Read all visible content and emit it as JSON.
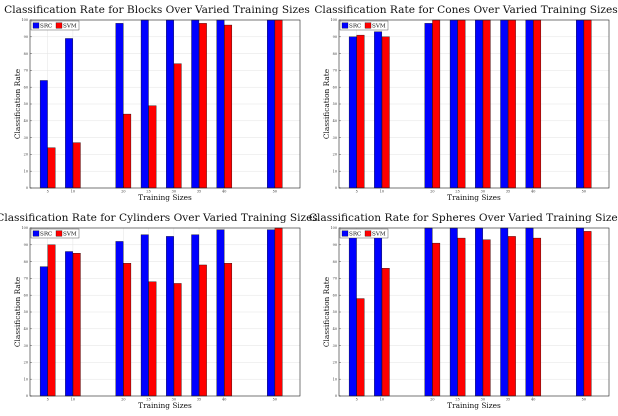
{
  "chart_data": [
    {
      "type": "bar",
      "title": "Classification Rate for Blocks Over Varied Training Sizes",
      "xlabel": "Training Sizes",
      "ylabel": "Classification Rate",
      "ylim": [
        0,
        100
      ],
      "grid": true,
      "legend": "top-left",
      "x": [
        5,
        10,
        20,
        25,
        30,
        35,
        40,
        50
      ],
      "xlim": [
        1.5,
        55
      ],
      "yticks": [
        0,
        10,
        20,
        30,
        40,
        50,
        60,
        70,
        80,
        90,
        100
      ],
      "series": [
        {
          "name": "SRC",
          "color": "#0000ff",
          "values": [
            64,
            89,
            98,
            100,
            100,
            100,
            100,
            100
          ]
        },
        {
          "name": "SVM",
          "color": "#ff0000",
          "values": [
            24,
            27,
            44,
            49,
            74,
            98,
            97,
            100
          ]
        }
      ]
    },
    {
      "type": "bar",
      "title": "Classification Rate for Cones Over Varied Training Sizes",
      "xlabel": "Training Sizes",
      "ylabel": "Classification Rate",
      "ylim": [
        0,
        100
      ],
      "grid": true,
      "legend": "top-left",
      "x": [
        5,
        10,
        20,
        25,
        30,
        35,
        40,
        50
      ],
      "xlim": [
        1.5,
        55
      ],
      "yticks": [
        0,
        10,
        20,
        30,
        40,
        50,
        60,
        70,
        80,
        90,
        100
      ],
      "series": [
        {
          "name": "SRC",
          "color": "#0000ff",
          "values": [
            90,
            93,
            98,
            100,
            100,
            100,
            100,
            100
          ]
        },
        {
          "name": "SVM",
          "color": "#ff0000",
          "values": [
            91,
            90,
            100,
            100,
            100,
            100,
            100,
            100
          ]
        }
      ]
    },
    {
      "type": "bar",
      "title": "Classification Rate for Cylinders Over Varied Training Sizes",
      "xlabel": "Training Sizes",
      "ylabel": "Classification Rate",
      "ylim": [
        0,
        100
      ],
      "grid": true,
      "legend": "top-left",
      "x": [
        5,
        10,
        20,
        25,
        30,
        35,
        40,
        50
      ],
      "xlim": [
        1.5,
        55
      ],
      "yticks": [
        0,
        10,
        20,
        30,
        40,
        50,
        60,
        70,
        80,
        90,
        100
      ],
      "series": [
        {
          "name": "SRC",
          "color": "#0000ff",
          "values": [
            77,
            86,
            92,
            96,
            95,
            96,
            99,
            99
          ]
        },
        {
          "name": "SVM",
          "color": "#ff0000",
          "values": [
            90,
            85,
            79,
            68,
            67,
            78,
            79,
            100
          ]
        }
      ]
    },
    {
      "type": "bar",
      "title": "Classification Rate for Spheres Over Varied Training Sizes",
      "xlabel": "Training Sizes",
      "ylabel": "Classification Rate",
      "ylim": [
        0,
        100
      ],
      "grid": true,
      "legend": "top-left",
      "x": [
        5,
        10,
        20,
        25,
        30,
        35,
        40,
        50
      ],
      "xlim": [
        1.5,
        55
      ],
      "yticks": [
        0,
        10,
        20,
        30,
        40,
        50,
        60,
        70,
        80,
        90,
        100
      ],
      "series": [
        {
          "name": "SRC",
          "color": "#0000ff",
          "values": [
            97,
            98,
            100,
            100,
            100,
            100,
            100,
            100
          ]
        },
        {
          "name": "SVM",
          "color": "#ff0000",
          "values": [
            58,
            76,
            91,
            94,
            93,
            95,
            94,
            98
          ]
        }
      ]
    }
  ]
}
